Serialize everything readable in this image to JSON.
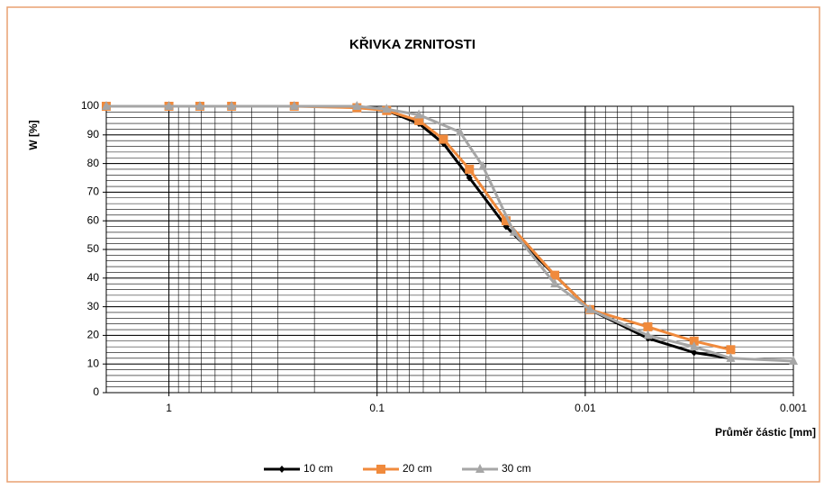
{
  "chart_data": {
    "type": "line",
    "title": "KŘIVKA ZRNITOSTI",
    "y_label": "W  [%]",
    "x_label": "Průměr částic [mm]",
    "x_scale": "log",
    "x_reversed": true,
    "xlim": [
      2,
      0.001
    ],
    "xticks": [
      1,
      0.1,
      0.01,
      0.001
    ],
    "ylim": [
      0,
      100
    ],
    "yticks": [
      0,
      10,
      20,
      30,
      40,
      50,
      60,
      70,
      80,
      90,
      100
    ],
    "grid": true,
    "legend": "bottom",
    "series": [
      {
        "name": "10 cm",
        "color": "#000000",
        "marker": "diamond",
        "x": [
          2,
          1,
          0.71,
          0.5,
          0.25,
          0.125,
          0.09,
          0.063,
          0.048,
          0.036,
          0.024,
          0.014,
          0.0095,
          0.005,
          0.003,
          0.002
        ],
        "values": [
          100,
          100,
          100,
          100,
          100,
          100,
          98.5,
          94,
          87,
          75,
          58,
          41,
          29,
          19,
          14,
          12
        ]
      },
      {
        "name": "20 cm",
        "color": "#f08a3c",
        "marker": "square",
        "x": [
          2,
          1,
          0.71,
          0.5,
          0.25,
          0.125,
          0.09,
          0.063,
          0.048,
          0.036,
          0.024,
          0.014,
          0.0095,
          0.005,
          0.003,
          0.002
        ],
        "values": [
          100,
          100,
          100,
          100,
          100,
          99.5,
          98.5,
          95,
          88.5,
          78,
          60,
          41,
          29,
          23,
          18,
          15
        ]
      },
      {
        "name": "30 cm",
        "color": "#a6a6a6",
        "marker": "triangle",
        "x": [
          2,
          1,
          0.71,
          0.5,
          0.25,
          0.125,
          0.09,
          0.063,
          0.04,
          0.031,
          0.022,
          0.014,
          0.0095,
          0.005,
          0.003,
          0.002,
          0.001
        ],
        "values": [
          100,
          100,
          100,
          100,
          100,
          100,
          99,
          97,
          91,
          79,
          56,
          38,
          29,
          20,
          16,
          12,
          11
        ]
      }
    ]
  }
}
